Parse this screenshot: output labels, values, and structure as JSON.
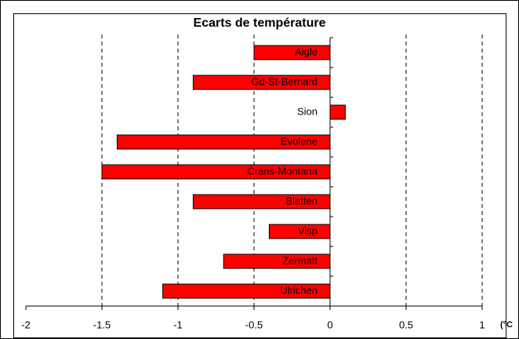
{
  "chart_data": {
    "type": "barh",
    "title": "Ecarts de température",
    "categories": [
      "Aigle",
      "Gd-St-Bernard",
      "Sion",
      "Evolene",
      "Crans-Montana",
      "Blatten",
      "Visp",
      "Zermatt",
      "Ulrichen"
    ],
    "values": [
      -0.5,
      -0.9,
      0.1,
      -1.4,
      -1.5,
      -0.9,
      -0.4,
      -0.7,
      -1.1
    ],
    "color": "#ff0000",
    "x_label": "(°C",
    "xlim": [
      -2,
      1
    ],
    "xticks": [
      -2,
      -1.5,
      -1,
      -0.5,
      0,
      0.5,
      1
    ],
    "grid": true
  }
}
